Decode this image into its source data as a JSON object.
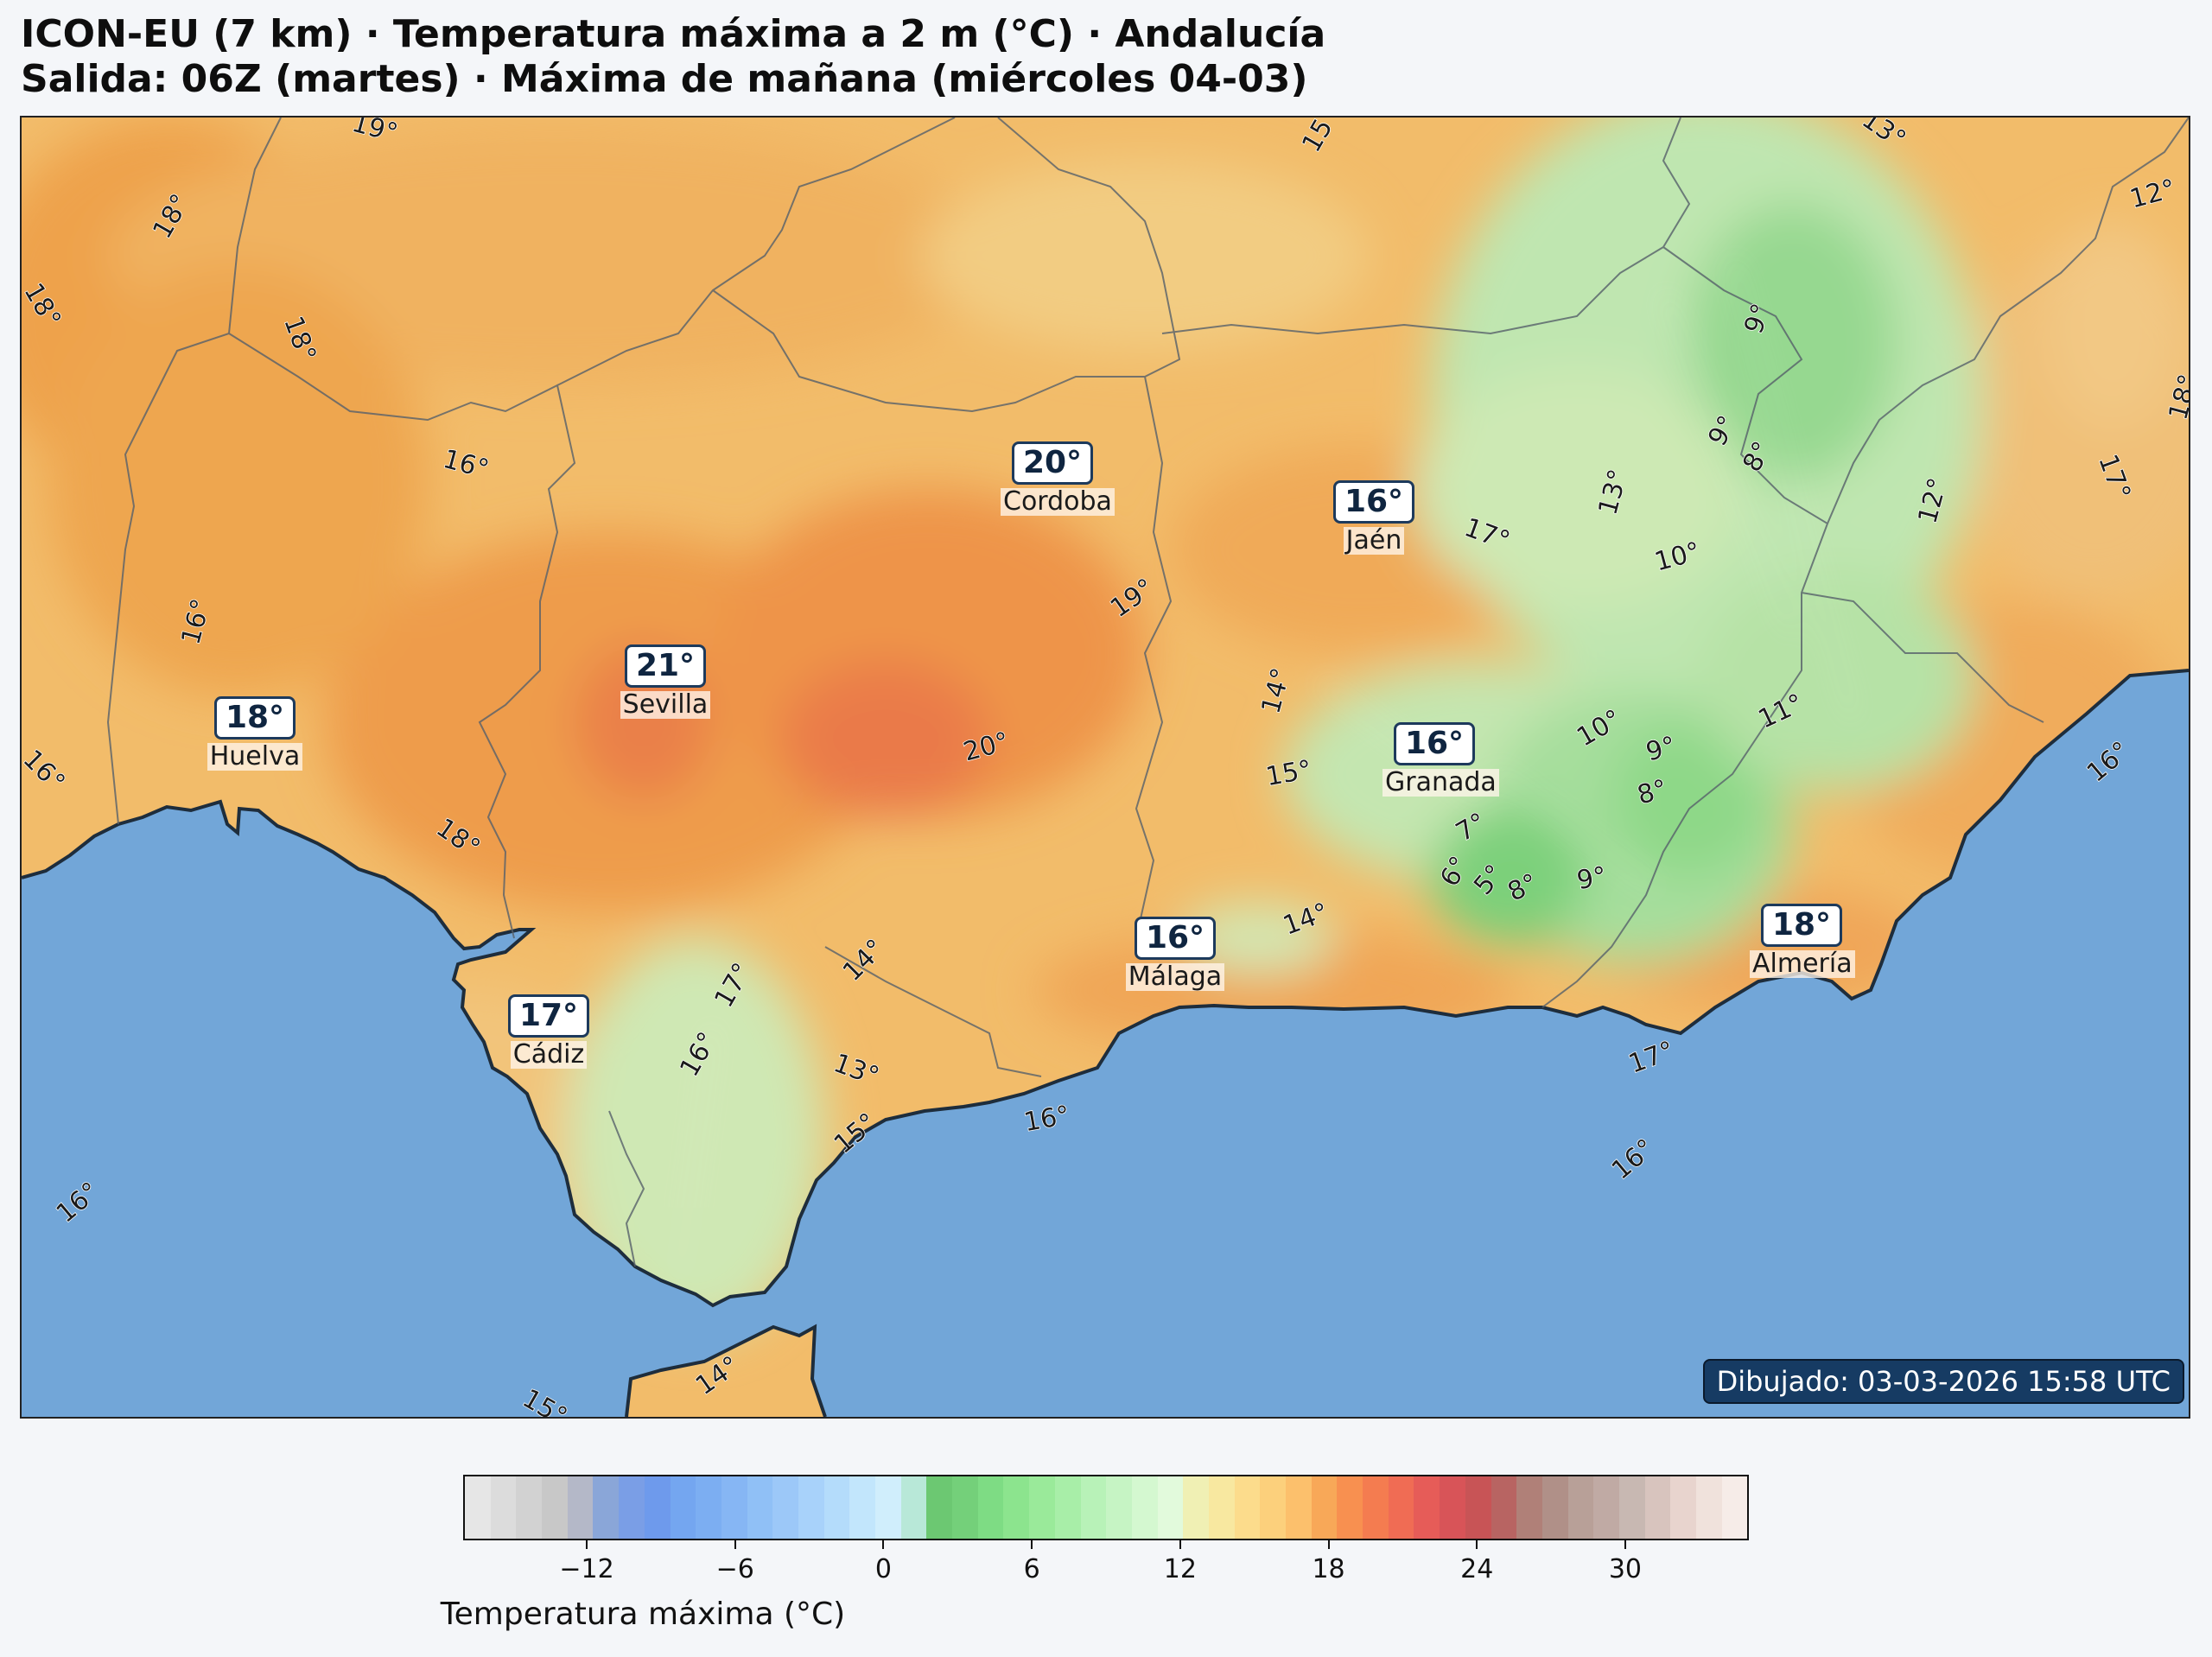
{
  "title": {
    "line1": "ICON-EU (7 km) · Temperatura máxima a 2 m (°C) · Andalucía",
    "line2": "Salida: 06Z (martes) · Máxima de mañana (miércoles 04-03)"
  },
  "stamp": "Dibujado: 03-03-2026 15:58 UTC",
  "colorbar": {
    "label": "Temperatura máxima (°C)",
    "ticks": [
      "−12",
      "−6",
      "0",
      "6",
      "12",
      "18",
      "24",
      "30"
    ],
    "tick_values": [
      -12,
      -6,
      0,
      6,
      12,
      18,
      24,
      30
    ],
    "range": [
      -17,
      35
    ],
    "colors": [
      "#e6e6e6",
      "#dcdcdc",
      "#d2d2d2",
      "#c8c8c8",
      "#b4b8c8",
      "#8aa6d8",
      "#7a9ee6",
      "#6e9aec",
      "#74a6f0",
      "#7caef2",
      "#86b6f4",
      "#90c0f6",
      "#9cc8f8",
      "#a8d2fa",
      "#b4dcfb",
      "#c2e6fc",
      "#d0eefc",
      "#b8e8d8",
      "#6cc872",
      "#74d07a",
      "#7edc84",
      "#8ce48e",
      "#9aea9a",
      "#a8eea8",
      "#b8f2b8",
      "#c6f4c4",
      "#d4f8d0",
      "#e2fadc",
      "#f0f0b4",
      "#f8e8a0",
      "#fcdc8c",
      "#fcd07c",
      "#fcc06c",
      "#f8a858",
      "#f89050",
      "#f47c50",
      "#f06c54",
      "#e65c58",
      "#d85458",
      "#c85456",
      "#b86462",
      "#b08078",
      "#b09088",
      "#b8a098",
      "#c0aaa4",
      "#c8b8b2",
      "#d8c4be",
      "#e8d4ce",
      "#f0e2dc",
      "#f6ece8"
    ]
  },
  "cities": [
    {
      "name": "Cordoba",
      "temp": "20°"
    },
    {
      "name": "Sevilla",
      "temp": "21°"
    },
    {
      "name": "Huelva",
      "temp": "18°"
    },
    {
      "name": "Jaén",
      "temp": "16°"
    },
    {
      "name": "Granada",
      "temp": "16°"
    },
    {
      "name": "Málaga",
      "temp": "16°"
    },
    {
      "name": "Cádiz",
      "temp": "17°"
    },
    {
      "name": "Almería",
      "temp": "18°"
    }
  ],
  "contour_labels": [
    "19°",
    "18°",
    "18°",
    "18°",
    "16°",
    "16°",
    "16°",
    "18°",
    "15°",
    "13°",
    "12°",
    "9°",
    "9°",
    "8°",
    "13°",
    "12°",
    "17°",
    "18°",
    "17°",
    "10°",
    "19°",
    "14°",
    "20°",
    "15°",
    "10°",
    "9°",
    "11°",
    "8°",
    "7°",
    "6°",
    "5°",
    "8°",
    "9°",
    "16°",
    "14°",
    "14°",
    "17°",
    "16°",
    "13°",
    "15°",
    "16°",
    "17°",
    "16°",
    "16°",
    "14°",
    "15°"
  ]
}
